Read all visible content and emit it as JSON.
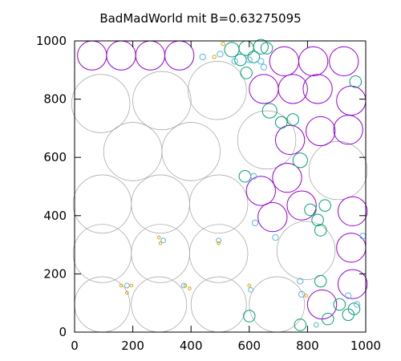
{
  "chart_data": {
    "type": "scatter",
    "title": "BadMadWorld mit B=0.63275095",
    "xlabel": "",
    "ylabel": "",
    "xlim": [
      0,
      1000
    ],
    "ylim": [
      0,
      1000
    ],
    "xticks": [
      0,
      200,
      400,
      600,
      800,
      1000
    ],
    "yticks": [
      0,
      200,
      400,
      600,
      800,
      1000
    ],
    "grid": false,
    "legend": "none",
    "colors": {
      "grey": "#a0a0a0",
      "purple": "#9400d3",
      "teal": "#009e73",
      "cyan": "#56b4e9",
      "orange": "#e69f00"
    },
    "series": [
      {
        "color": "grey",
        "circles": [
          {
            "x": 95,
            "y": 95,
            "r": 95
          },
          {
            "x": 290,
            "y": 95,
            "r": 95
          },
          {
            "x": 495,
            "y": 95,
            "r": 95
          },
          {
            "x": 695,
            "y": 95,
            "r": 95
          },
          {
            "x": 95,
            "y": 270,
            "r": 100
          },
          {
            "x": 295,
            "y": 270,
            "r": 100
          },
          {
            "x": 495,
            "y": 270,
            "r": 100
          },
          {
            "x": 795,
            "y": 280,
            "r": 100
          },
          {
            "x": 95,
            "y": 440,
            "r": 100
          },
          {
            "x": 295,
            "y": 440,
            "r": 100
          },
          {
            "x": 495,
            "y": 440,
            "r": 100
          },
          {
            "x": 200,
            "y": 620,
            "r": 100
          },
          {
            "x": 400,
            "y": 620,
            "r": 100
          },
          {
            "x": 660,
            "y": 660,
            "r": 100
          },
          {
            "x": 905,
            "y": 555,
            "r": 100
          },
          {
            "x": 90,
            "y": 785,
            "r": 100
          },
          {
            "x": 300,
            "y": 795,
            "r": 100
          },
          {
            "x": 490,
            "y": 830,
            "r": 100
          }
        ]
      },
      {
        "color": "purple",
        "circles": [
          {
            "x": 60,
            "y": 950,
            "r": 50
          },
          {
            "x": 160,
            "y": 950,
            "r": 50
          },
          {
            "x": 260,
            "y": 950,
            "r": 50
          },
          {
            "x": 360,
            "y": 950,
            "r": 50
          },
          {
            "x": 720,
            "y": 930,
            "r": 50
          },
          {
            "x": 820,
            "y": 930,
            "r": 50
          },
          {
            "x": 925,
            "y": 930,
            "r": 50
          },
          {
            "x": 650,
            "y": 835,
            "r": 50
          },
          {
            "x": 750,
            "y": 835,
            "r": 50
          },
          {
            "x": 835,
            "y": 835,
            "r": 50
          },
          {
            "x": 950,
            "y": 795,
            "r": 50
          },
          {
            "x": 740,
            "y": 660,
            "r": 50
          },
          {
            "x": 845,
            "y": 690,
            "r": 50
          },
          {
            "x": 940,
            "y": 695,
            "r": 50
          },
          {
            "x": 730,
            "y": 530,
            "r": 50
          },
          {
            "x": 640,
            "y": 485,
            "r": 50
          },
          {
            "x": 680,
            "y": 395,
            "r": 50
          },
          {
            "x": 780,
            "y": 435,
            "r": 50
          },
          {
            "x": 955,
            "y": 415,
            "r": 50
          },
          {
            "x": 950,
            "y": 290,
            "r": 50
          },
          {
            "x": 955,
            "y": 165,
            "r": 50
          },
          {
            "x": 850,
            "y": 95,
            "r": 50
          }
        ]
      },
      {
        "color": "teal",
        "circles": [
          {
            "x": 540,
            "y": 970,
            "r": 25
          },
          {
            "x": 590,
            "y": 975,
            "r": 25
          },
          {
            "x": 640,
            "y": 980,
            "r": 25
          },
          {
            "x": 615,
            "y": 945,
            "r": 20
          },
          {
            "x": 570,
            "y": 935,
            "r": 20
          },
          {
            "x": 660,
            "y": 975,
            "r": 20
          },
          {
            "x": 590,
            "y": 890,
            "r": 20
          },
          {
            "x": 670,
            "y": 760,
            "r": 25
          },
          {
            "x": 710,
            "y": 720,
            "r": 20
          },
          {
            "x": 750,
            "y": 730,
            "r": 20
          },
          {
            "x": 775,
            "y": 590,
            "r": 25
          },
          {
            "x": 585,
            "y": 535,
            "r": 20
          },
          {
            "x": 810,
            "y": 420,
            "r": 20
          },
          {
            "x": 835,
            "y": 385,
            "r": 20
          },
          {
            "x": 845,
            "y": 350,
            "r": 20
          },
          {
            "x": 860,
            "y": 435,
            "r": 20
          },
          {
            "x": 845,
            "y": 175,
            "r": 20
          },
          {
            "x": 940,
            "y": 60,
            "r": 20
          },
          {
            "x": 910,
            "y": 95,
            "r": 20
          },
          {
            "x": 965,
            "y": 860,
            "r": 20
          },
          {
            "x": 775,
            "y": 25,
            "r": 20
          },
          {
            "x": 870,
            "y": 45,
            "r": 20
          },
          {
            "x": 960,
            "y": 80,
            "r": 20
          },
          {
            "x": 600,
            "y": 55,
            "r": 20
          }
        ]
      },
      {
        "color": "cyan",
        "circles": [
          {
            "x": 440,
            "y": 945,
            "r": 10
          },
          {
            "x": 500,
            "y": 955,
            "r": 10
          },
          {
            "x": 600,
            "y": 935,
            "r": 10
          },
          {
            "x": 640,
            "y": 930,
            "r": 10
          },
          {
            "x": 650,
            "y": 910,
            "r": 10
          },
          {
            "x": 550,
            "y": 930,
            "r": 10
          },
          {
            "x": 615,
            "y": 535,
            "r": 10
          },
          {
            "x": 620,
            "y": 375,
            "r": 10
          },
          {
            "x": 690,
            "y": 325,
            "r": 10
          },
          {
            "x": 305,
            "y": 315,
            "r": 8
          },
          {
            "x": 495,
            "y": 315,
            "r": 8
          },
          {
            "x": 180,
            "y": 160,
            "r": 8
          },
          {
            "x": 375,
            "y": 160,
            "r": 8
          },
          {
            "x": 605,
            "y": 145,
            "r": 8
          },
          {
            "x": 775,
            "y": 175,
            "r": 10
          },
          {
            "x": 780,
            "y": 130,
            "r": 10
          },
          {
            "x": 940,
            "y": 125,
            "r": 10
          },
          {
            "x": 970,
            "y": 95,
            "r": 10
          },
          {
            "x": 990,
            "y": 330,
            "r": 10
          },
          {
            "x": 830,
            "y": 25,
            "r": 8
          }
        ]
      },
      {
        "color": "orange",
        "circles": [
          {
            "x": 480,
            "y": 945,
            "r": 6
          },
          {
            "x": 510,
            "y": 990,
            "r": 6
          },
          {
            "x": 290,
            "y": 325,
            "r": 5
          },
          {
            "x": 295,
            "y": 305,
            "r": 5
          },
          {
            "x": 495,
            "y": 305,
            "r": 5
          },
          {
            "x": 160,
            "y": 160,
            "r": 5
          },
          {
            "x": 195,
            "y": 160,
            "r": 5
          },
          {
            "x": 180,
            "y": 135,
            "r": 5
          },
          {
            "x": 380,
            "y": 160,
            "r": 5
          },
          {
            "x": 395,
            "y": 150,
            "r": 5
          },
          {
            "x": 600,
            "y": 160,
            "r": 5
          },
          {
            "x": 795,
            "y": 125,
            "r": 5
          }
        ]
      }
    ]
  }
}
